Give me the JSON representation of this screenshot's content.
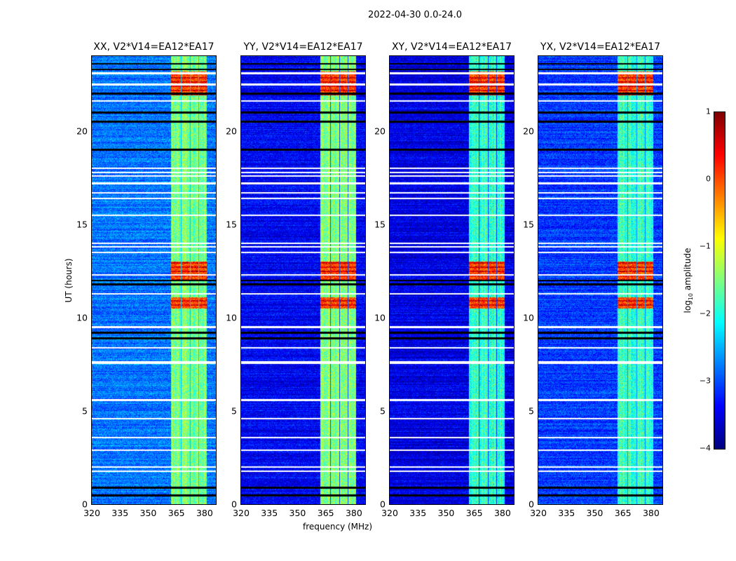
{
  "suptitle": "2022-04-30 0.0-24.0",
  "chart_data": {
    "type": "heatmap",
    "title": "2022-04-30 0.0-24.0",
    "xlabel": "frequency (MHz)",
    "ylabel": "UT (hours)",
    "xlim": [
      320,
      386
    ],
    "ylim": [
      0,
      24
    ],
    "xticks": [
      "320",
      "335",
      "350",
      "365",
      "380"
    ],
    "yticks": [
      "0",
      "5",
      "10",
      "15",
      "20"
    ],
    "panels": [
      {
        "title": "XX, V2*V14=EA12*EA17",
        "background_log_amp": -2.8
      },
      {
        "title": "YY, V2*V14=EA12*EA17",
        "background_log_amp": -3.4
      },
      {
        "title": "XY, V2*V14=EA12*EA17",
        "background_log_amp": -3.5
      },
      {
        "title": "YX, V2*V14=EA12*EA17",
        "background_log_amp": -3.1
      }
    ],
    "rfi_band_mhz": [
      362,
      381
    ],
    "subbands_mhz": [
      [
        362,
        367
      ],
      [
        367.5,
        372
      ],
      [
        372.5,
        376.5
      ],
      [
        377,
        381
      ]
    ],
    "band_log_amp": -1.5,
    "strong_rfi_ut_hours": [
      [
        10.5,
        11.1
      ],
      [
        12.0,
        13.0
      ],
      [
        21.9,
        23.2
      ]
    ],
    "flagged_ut_hours": [
      1.8,
      2.0,
      2.9,
      3.6,
      4.6,
      5.6,
      7.6,
      8.4,
      9.5,
      11.3,
      12.3,
      13.5,
      13.8,
      14.0,
      15.5,
      16.4,
      16.7,
      17.2,
      17.6,
      17.8,
      18.0,
      21.6,
      22.5,
      23.1
    ],
    "zero_ut_hours": [
      0.5,
      0.9,
      8.9,
      9.2,
      11.8,
      12.0,
      19.0,
      20.5,
      21.0,
      22.0,
      23.3,
      23.6
    ],
    "colorbar": {
      "label": "log10 amplitude",
      "label_main": "log",
      "label_sub": "10",
      "label_rest": " amplitude",
      "range": [
        -4,
        1
      ],
      "ticks": [
        "1",
        "0",
        "−1",
        "−2",
        "−3",
        "−4"
      ],
      "colormap": "jet"
    }
  }
}
